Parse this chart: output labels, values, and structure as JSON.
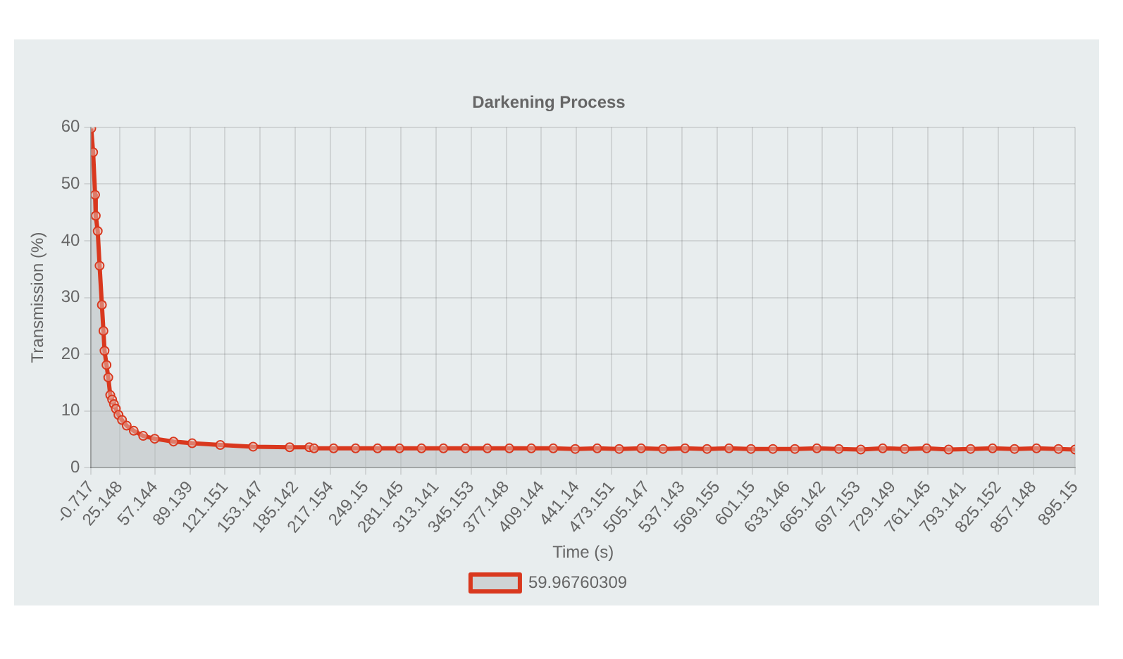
{
  "chart_data": {
    "type": "area",
    "title": "Darkening Process",
    "xlabel": "Time (s)",
    "ylabel": "Transmission (%)",
    "x": [
      -0.717,
      1.0,
      2.8,
      3.4,
      5.2,
      6.9,
      9.0,
      10.4,
      11.4,
      13.2,
      14.8,
      16.6,
      18.3,
      20.0,
      21.7,
      24.1,
      27.3,
      31.6,
      38.0,
      46.6,
      57.1,
      74.2,
      91.2,
      116.8,
      146.7,
      180,
      197.9,
      202.2,
      220,
      240,
      260,
      280,
      300,
      320,
      340,
      360,
      380,
      400,
      420,
      440,
      460,
      480,
      500,
      520,
      540,
      560,
      580,
      600,
      620,
      640,
      660,
      680,
      700,
      720,
      740,
      760,
      780,
      800,
      820,
      840,
      860,
      880,
      895.15
    ],
    "series": [
      {
        "name": "59.96760309",
        "color": "#d9381e",
        "values": [
          59.8,
          55.6,
          48.1,
          44.4,
          41.7,
          35.6,
          28.7,
          24.1,
          20.6,
          18.1,
          15.9,
          12.8,
          12.0,
          11.2,
          10.4,
          9.3,
          8.4,
          7.4,
          6.5,
          5.6,
          5.1,
          4.6,
          4.3,
          4.0,
          3.7,
          3.6,
          3.6,
          3.4,
          3.4,
          3.4,
          3.4,
          3.4,
          3.4,
          3.4,
          3.4,
          3.4,
          3.4,
          3.4,
          3.4,
          3.3,
          3.4,
          3.3,
          3.4,
          3.3,
          3.4,
          3.3,
          3.4,
          3.3,
          3.3,
          3.3,
          3.4,
          3.3,
          3.2,
          3.4,
          3.3,
          3.4,
          3.2,
          3.3,
          3.4,
          3.3,
          3.4,
          3.3,
          3.2
        ]
      }
    ],
    "xlim": [
      -0.717,
      895.15
    ],
    "xticks": [
      -0.717,
      25.148,
      57.144,
      89.139,
      121.151,
      153.147,
      185.142,
      217.154,
      249.15,
      281.145,
      313.141,
      345.153,
      377.148,
      409.144,
      441.14,
      473.151,
      505.147,
      537.143,
      569.155,
      601.15,
      633.146,
      665.142,
      697.153,
      729.149,
      761.145,
      793.141,
      825.152,
      857.148,
      895.15
    ],
    "ylim": [
      0,
      60
    ],
    "yticks": [
      0,
      10,
      20,
      30,
      40,
      50,
      60
    ],
    "grid": true,
    "legend": "bottom",
    "marker": "circle"
  }
}
